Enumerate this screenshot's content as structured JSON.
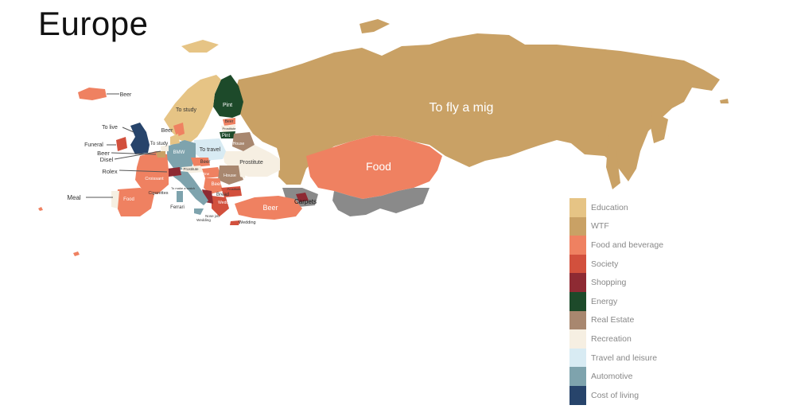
{
  "title": "Europe",
  "colors": {
    "education": "#e6c485",
    "wtf": "#c9a165",
    "food": "#ef8161",
    "society": "#d2503d",
    "shopping": "#8e2a33",
    "energy": "#1d4a2a",
    "real_estate": "#a8876f",
    "recreation": "#f6efe2",
    "travel": "#d8ebf3",
    "automotive": "#7ea3ad",
    "cost": "#27446b",
    "grey": "#8a8a8a"
  },
  "legend": [
    {
      "label": "Education",
      "color": "#e6c485"
    },
    {
      "label": "WTF",
      "color": "#c9a165"
    },
    {
      "label": "Food and beverage",
      "color": "#ef8161"
    },
    {
      "label": "Society",
      "color": "#d2503d"
    },
    {
      "label": "Shopping",
      "color": "#8e2a33"
    },
    {
      "label": "Energy",
      "color": "#1d4a2a"
    },
    {
      "label": "Real Estate",
      "color": "#a8876f"
    },
    {
      "label": "Recreation",
      "color": "#f6efe2"
    },
    {
      "label": "Travel and leisure",
      "color": "#d8ebf3"
    },
    {
      "label": "Automotive",
      "color": "#7ea3ad"
    },
    {
      "label": "Cost of living",
      "color": "#27446b"
    }
  ],
  "labels": {
    "russia": "To fly a mig",
    "kazakhstan": "Food",
    "turkey": "Beer",
    "georgia": "Carpets",
    "finland": "Pint",
    "sweden": "To study",
    "norway": "Beer",
    "iceland": "Beer",
    "uk_callout": "To live",
    "ireland": "Funeral",
    "belgium": "Beer",
    "netherlands": "Disel",
    "switzerland": "Rolex",
    "portugal": "Meal",
    "spain": "Food",
    "france": "Croissant",
    "monaco": "Cigarettes",
    "italy": "Ferrari",
    "italy_small": "Wedding",
    "germany": "BMW",
    "poland": "To travel",
    "denmark": "To study",
    "czech": "Beer",
    "austria": "Prostitute",
    "slovenia": "To make a watch",
    "ukraine": "Prostitute",
    "belarus": "House",
    "latvia": "Beer",
    "estonia": "Prostitute",
    "lithuania": "Pint",
    "romania": "House",
    "moldova": "Prostitute",
    "bulgaria": "Bread",
    "serbia": "Beer",
    "macedonia": "Wedding",
    "greece": "Nose job",
    "cyprus": "Wedding",
    "hungary": "Wine"
  }
}
